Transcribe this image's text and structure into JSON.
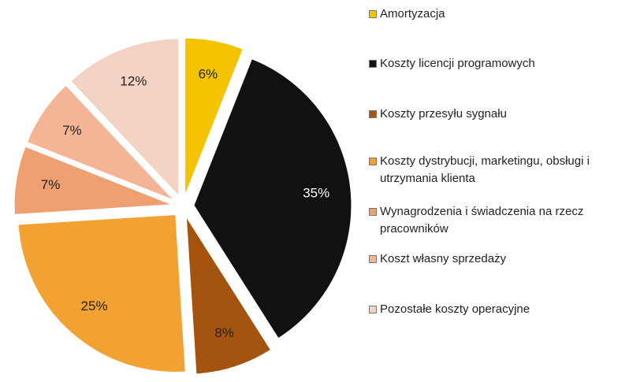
{
  "chart_data": {
    "type": "pie",
    "categories": [
      "Amortyzacja",
      "Koszty licencji programowych",
      "Koszty przesyłu sygnału",
      "Koszty dystrybucji, marketingu, obsługi i utrzymania klienta",
      "Wynagrodzenia i świadczenia na rzecz pracowników",
      "Koszt własny sprzedaży",
      "Pozostałe koszty operacyjne"
    ],
    "values": [
      6,
      35,
      8,
      25,
      7,
      7,
      12
    ],
    "value_labels": [
      "6%",
      "35%",
      "8%",
      "25%",
      "7%",
      "7%",
      "12%"
    ],
    "colors": [
      "#f5c400",
      "#111111",
      "#a4540f",
      "#f2a232",
      "#eea070",
      "#f3b595",
      "#f3d3c3"
    ],
    "legend": "right"
  }
}
